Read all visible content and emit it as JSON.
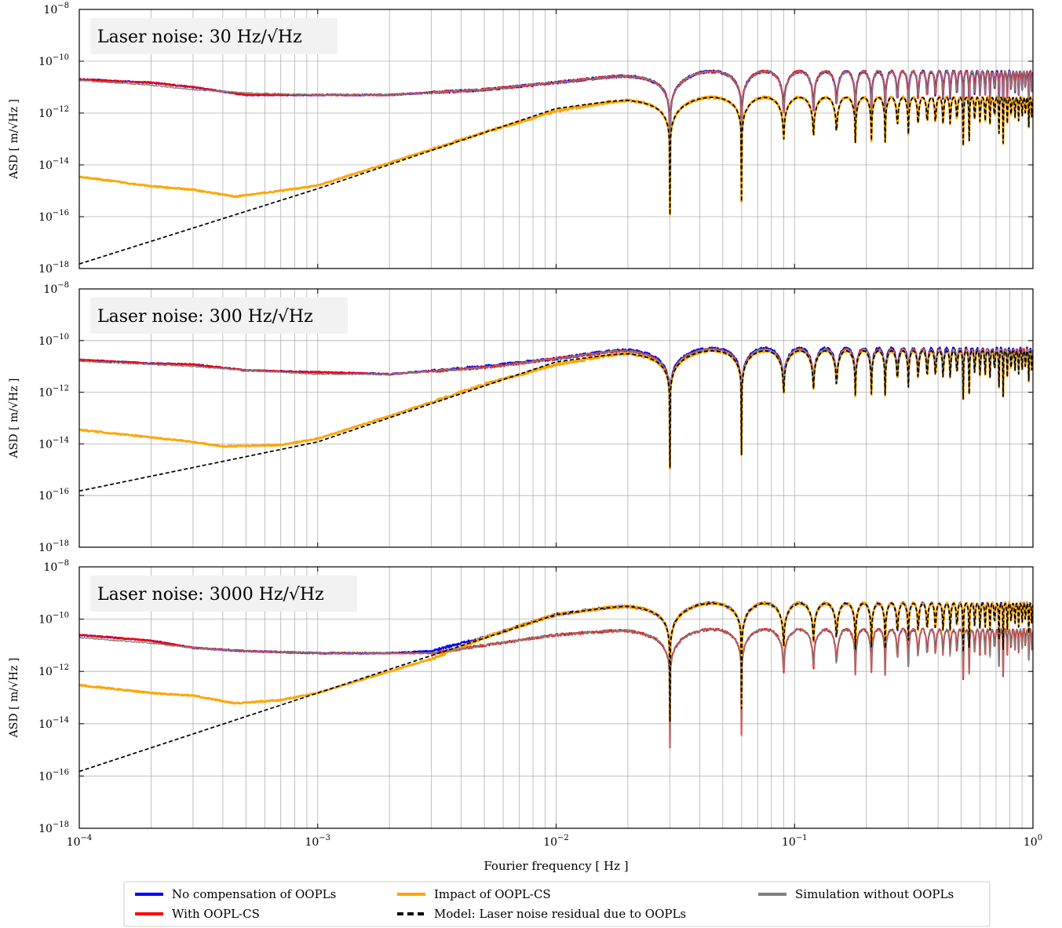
{
  "figure": {
    "xlabel": "Fourier frequency [ Hz ]",
    "ylabel": "ASD [ m/√Hz ]"
  },
  "legend": {
    "placement": "bottom-center",
    "entries": [
      {
        "label": "No compensation of OOPLs",
        "color": "#0000ff",
        "style": "solid"
      },
      {
        "label": "Impact of OOPL-CS",
        "color": "#ffa500",
        "style": "solid"
      },
      {
        "label": "Simulation without OOPLs",
        "color": "#808080",
        "style": "solid"
      },
      {
        "label": "With OOPL-CS",
        "color": "#ff0000",
        "style": "solid"
      },
      {
        "label": "Model: Laser noise residual due to OOPLs",
        "color": "#000000",
        "style": "dashed"
      }
    ]
  },
  "chart_data": [
    {
      "type": "line",
      "title": "Laser noise: 30 Hz/√Hz",
      "xscale": "log",
      "yscale": "log",
      "xlim": [
        0.0001,
        1
      ],
      "ylim": [
        1e-18,
        1e-08
      ],
      "xticks": [
        "10^-4",
        "10^-3",
        "10^-2",
        "10^-1",
        "10^0"
      ],
      "yticks": [
        "10^-18",
        "10^-16",
        "10^-14",
        "10^-12",
        "10^-10",
        "10^-8"
      ],
      "grid": true,
      "notch_frequencies": [
        0.03,
        0.06,
        0.09,
        0.12
      ],
      "series": [
        {
          "name": "No compensation of OOPLs",
          "x": [
            0.0001,
            0.0002,
            0.0003,
            0.0005,
            0.001,
            0.002,
            0.005,
            0.01,
            0.02,
            0.04,
            0.08,
            0.2,
            0.5,
            1.0
          ],
          "y": [
            2e-11,
            1.5e-11,
            1e-11,
            5e-12,
            5e-12,
            5e-12,
            8e-12,
            1.5e-11,
            3e-11,
            4e-11,
            4e-11,
            4e-11,
            4e-11,
            4e-11
          ]
        },
        {
          "name": "With OOPL-CS",
          "x": [
            0.0001,
            0.0002,
            0.0003,
            0.0005,
            0.001,
            0.002,
            0.005,
            0.01,
            0.02,
            0.04,
            0.08,
            0.2,
            0.5,
            1.0
          ],
          "y": [
            2e-11,
            1.5e-11,
            1e-11,
            5e-12,
            5e-12,
            5e-12,
            8e-12,
            1.5e-11,
            3e-11,
            4e-11,
            4e-11,
            4e-11,
            4e-11,
            4e-11
          ]
        },
        {
          "name": "Impact of OOPL-CS",
          "x": [
            0.0001,
            0.0002,
            0.0003,
            0.00045,
            0.0007,
            0.001,
            0.002,
            0.005,
            0.01,
            0.02,
            0.04,
            0.1,
            1.0
          ],
          "y": [
            3.5e-15,
            1.5e-15,
            1.1e-15,
            6e-16,
            1e-15,
            1.6e-15,
            1.2e-14,
            1.8e-13,
            1.2e-12,
            3.5e-12,
            4e-12,
            4e-12,
            4e-12
          ]
        },
        {
          "name": "Simulation without OOPLs",
          "x": [
            0.0001,
            0.0002,
            0.0003,
            0.0005,
            0.001,
            0.002,
            0.005,
            0.01,
            0.02,
            0.04,
            0.08,
            0.2,
            0.5,
            1.0
          ],
          "y": [
            1.8e-11,
            1.2e-11,
            8e-12,
            6e-12,
            5e-12,
            5e-12,
            8e-12,
            1.5e-11,
            3e-11,
            4e-11,
            4e-11,
            4e-11,
            4e-11,
            4e-11
          ]
        },
        {
          "name": "Model: Laser noise residual due to OOPLs",
          "x": [
            0.0001,
            0.001,
            0.01,
            0.02,
            0.04,
            0.1,
            1.0
          ],
          "y": [
            1.5e-18,
            1.2e-15,
            1.5e-12,
            3.5e-12,
            4e-12,
            4e-12,
            4e-12
          ]
        }
      ]
    },
    {
      "type": "line",
      "title": "Laser noise: 300 Hz/√Hz",
      "xscale": "log",
      "yscale": "log",
      "xlim": [
        0.0001,
        1
      ],
      "ylim": [
        1e-18,
        1e-08
      ],
      "xticks": [
        "10^-4",
        "10^-3",
        "10^-2",
        "10^-1",
        "10^0"
      ],
      "yticks": [
        "10^-18",
        "10^-16",
        "10^-14",
        "10^-12",
        "10^-10",
        "10^-8"
      ],
      "grid": true,
      "notch_frequencies": [
        0.03,
        0.06,
        0.09,
        0.12
      ],
      "series": [
        {
          "name": "No compensation of OOPLs",
          "x": [
            0.0001,
            0.0002,
            0.0003,
            0.0005,
            0.001,
            0.002,
            0.005,
            0.01,
            0.02,
            0.04,
            0.08,
            0.2,
            0.5,
            1.0
          ],
          "y": [
            1.8e-11,
            1.3e-11,
            1.2e-11,
            7e-12,
            6e-12,
            5e-12,
            1e-11,
            2e-11,
            5e-11,
            5e-11,
            5e-11,
            5e-11,
            5e-11,
            5e-11
          ]
        },
        {
          "name": "With OOPL-CS",
          "x": [
            0.0001,
            0.0002,
            0.0003,
            0.0005,
            0.001,
            0.002,
            0.005,
            0.01,
            0.02,
            0.04,
            0.08,
            0.2,
            0.5,
            1.0
          ],
          "y": [
            1.8e-11,
            1.3e-11,
            1.2e-11,
            7e-12,
            6e-12,
            5e-12,
            9e-12,
            2e-11,
            4.5e-11,
            4.5e-11,
            4.5e-11,
            4.5e-11,
            4.5e-11,
            4.5e-11
          ]
        },
        {
          "name": "Impact of OOPL-CS",
          "x": [
            0.0001,
            0.0002,
            0.0003,
            0.0004,
            0.0007,
            0.001,
            0.002,
            0.005,
            0.01,
            0.02,
            0.04,
            0.1,
            1.0
          ],
          "y": [
            3.5e-14,
            1.8e-14,
            1.2e-14,
            8e-15,
            9e-15,
            1.6e-14,
            1.2e-13,
            2e-12,
            1.2e-11,
            3.5e-11,
            4e-11,
            4e-11,
            4e-11
          ]
        },
        {
          "name": "Simulation without OOPLs",
          "x": [
            0.0001,
            0.0002,
            0.0003,
            0.0005,
            0.001,
            0.002,
            0.005,
            0.01,
            0.02,
            0.04,
            0.08,
            0.2,
            0.5,
            1.0
          ],
          "y": [
            1.6e-11,
            1.2e-11,
            1e-11,
            7e-12,
            5e-12,
            5e-12,
            9e-12,
            2e-11,
            4.5e-11,
            4.5e-11,
            4.5e-11,
            4.5e-11,
            4.5e-11,
            4.5e-11
          ]
        },
        {
          "name": "Model: Laser noise residual due to OOPLs",
          "x": [
            0.0001,
            0.001,
            0.01,
            0.02,
            0.04,
            0.1,
            1.0
          ],
          "y": [
            1.5e-16,
            1.2e-14,
            1.5e-11,
            3.5e-11,
            4e-11,
            4e-11,
            4e-11
          ]
        }
      ]
    },
    {
      "type": "line",
      "title": "Laser noise: 3000 Hz/√Hz",
      "xscale": "log",
      "yscale": "log",
      "xlim": [
        0.0001,
        1
      ],
      "ylim": [
        1e-18,
        1e-08
      ],
      "xticks": [
        "10^-4",
        "10^-3",
        "10^-2",
        "10^-1",
        "10^0"
      ],
      "yticks": [
        "10^-18",
        "10^-16",
        "10^-14",
        "10^-12",
        "10^-10",
        "10^-8"
      ],
      "grid": true,
      "notch_frequencies": [
        0.03,
        0.06,
        0.09,
        0.12
      ],
      "series": [
        {
          "name": "No compensation of OOPLs",
          "x": [
            0.0001,
            0.0002,
            0.0003,
            0.0005,
            0.001,
            0.002,
            0.003,
            0.005,
            0.01,
            0.02,
            0.04,
            0.08,
            0.2,
            0.5,
            1.0
          ],
          "y": [
            2.5e-11,
            1.5e-11,
            8e-12,
            6e-12,
            5e-12,
            5e-12,
            6e-12,
            2e-11,
            1.5e-10,
            3.5e-10,
            4e-10,
            4e-10,
            4e-10,
            4e-10,
            4e-10
          ]
        },
        {
          "name": "With OOPL-CS",
          "x": [
            0.0001,
            0.0002,
            0.0003,
            0.0005,
            0.001,
            0.002,
            0.003,
            0.005,
            0.01,
            0.02,
            0.04,
            0.08,
            0.2,
            0.5,
            1.0
          ],
          "y": [
            2.5e-11,
            1.5e-11,
            8e-12,
            6e-12,
            5e-12,
            5e-12,
            5e-12,
            1e-11,
            2.5e-11,
            4e-11,
            4e-11,
            4e-11,
            4e-11,
            4e-11,
            4e-11
          ]
        },
        {
          "name": "Impact of OOPL-CS",
          "x": [
            0.0001,
            0.0002,
            0.0003,
            0.00045,
            0.0007,
            0.001,
            0.002,
            0.003,
            0.005,
            0.01,
            0.02,
            0.04,
            0.1,
            1.0
          ],
          "y": [
            3e-13,
            1.5e-13,
            1.2e-13,
            6e-14,
            8e-14,
            1.5e-13,
            1e-12,
            3e-12,
            2e-11,
            1.5e-10,
            3.5e-10,
            4e-10,
            4e-10,
            4e-10
          ]
        },
        {
          "name": "Simulation without OOPLs",
          "x": [
            0.0001,
            0.0002,
            0.0003,
            0.0005,
            0.001,
            0.002,
            0.003,
            0.005,
            0.01,
            0.02,
            0.04,
            0.08,
            0.2,
            0.5,
            1.0
          ],
          "y": [
            2e-11,
            1.2e-11,
            8e-12,
            6e-12,
            5e-12,
            5e-12,
            5e-12,
            1e-11,
            2.5e-11,
            4e-11,
            4e-11,
            4e-11,
            4e-11,
            4e-11,
            4e-11
          ]
        },
        {
          "name": "Model: Laser noise residual due to OOPLs",
          "x": [
            0.0001,
            0.001,
            0.01,
            0.02,
            0.04,
            0.1,
            1.0
          ],
          "y": [
            1.5e-16,
            1.5e-13,
            1.5e-10,
            3.5e-10,
            4e-10,
            4e-10,
            4e-10
          ]
        }
      ]
    }
  ]
}
